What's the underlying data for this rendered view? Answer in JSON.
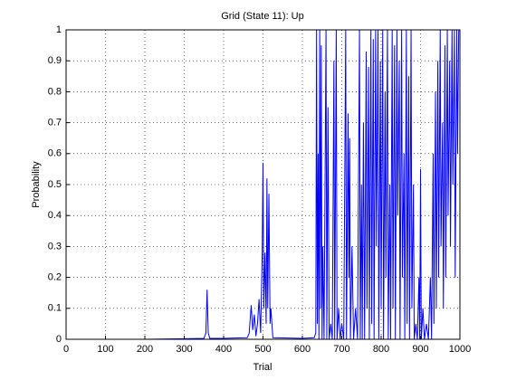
{
  "chart_data": {
    "type": "line",
    "title": "Grid (State 11): Up",
    "xlabel": "Trial",
    "ylabel": "Probability",
    "color": "#0000ff",
    "grid": true,
    "xlim": [
      0,
      1000
    ],
    "ylim": [
      0,
      1
    ],
    "xticks": [
      0,
      100,
      200,
      300,
      400,
      500,
      600,
      700,
      800,
      900,
      1000
    ],
    "yticks": [
      0,
      0.1,
      0.2,
      0.3,
      0.4,
      0.5,
      0.6,
      0.7,
      0.8,
      0.9,
      1
    ],
    "x": [
      0,
      200,
      300,
      350,
      355,
      358,
      361,
      365,
      400,
      460,
      465,
      470,
      474,
      478,
      482,
      486,
      490,
      494,
      498,
      500,
      502,
      505,
      508,
      510,
      512,
      515,
      518,
      520,
      525,
      600,
      630,
      634,
      636,
      638,
      640,
      642,
      644,
      646,
      648,
      650,
      652,
      655,
      660,
      662,
      665,
      668,
      672,
      676,
      680,
      682,
      686,
      688,
      692,
      696,
      700,
      705,
      710,
      712,
      716,
      718,
      720,
      722,
      726,
      730,
      735,
      740,
      745,
      747,
      750,
      752,
      755,
      758,
      762,
      764,
      768,
      770,
      774,
      776,
      780,
      782,
      786,
      788,
      792,
      794,
      798,
      800,
      804,
      806,
      810,
      812,
      816,
      818,
      822,
      824,
      828,
      830,
      834,
      836,
      840,
      842,
      846,
      848,
      852,
      854,
      858,
      860,
      864,
      866,
      870,
      872,
      876,
      878,
      882,
      884,
      888,
      892,
      896,
      898,
      900,
      902,
      906,
      910,
      915,
      920,
      925,
      928,
      932,
      934,
      938,
      940,
      944,
      946,
      950,
      952,
      956,
      958,
      962,
      964,
      968,
      970,
      974,
      976,
      980,
      982,
      986,
      988,
      992,
      994,
      997,
      1000
    ],
    "values": [
      0,
      0,
      0.002,
      0.003,
      0.02,
      0.16,
      0.02,
      0.003,
      0.003,
      0.005,
      0.02,
      0.11,
      0.03,
      0.08,
      0.01,
      0.05,
      0.13,
      0.02,
      0.28,
      0.57,
      0.1,
      0.28,
      0.05,
      0.52,
      0.1,
      0.47,
      0.05,
      0.1,
      0.005,
      0.003,
      0.005,
      0.02,
      1,
      0.05,
      0.6,
      0,
      1,
      0.1,
      0.95,
      0,
      0.3,
      0,
      1,
      0,
      0.75,
      0,
      0.05,
      0,
      0.9,
      0,
      1,
      0,
      0.1,
      0,
      0.05,
      0,
      1,
      0,
      0.73,
      0.2,
      0.65,
      0,
      0.3,
      0,
      0.1,
      0,
      1,
      0,
      0.5,
      0,
      0.7,
      0,
      0.93,
      0.1,
      0.88,
      0,
      1,
      0.05,
      0.97,
      0,
      1,
      0.3,
      1,
      0,
      0.9,
      0.1,
      1,
      0,
      0.8,
      0.2,
      1,
      0,
      0.5,
      0,
      1,
      0.1,
      0.95,
      0,
      1,
      0.4,
      0.9,
      0,
      1,
      0.2,
      0.6,
      0,
      1,
      0.05,
      0.85,
      0,
      1,
      0.1,
      0.5,
      0,
      0.05,
      0,
      0.2,
      0,
      0.55,
      0,
      0.1,
      0,
      0.05,
      0,
      0.2,
      0,
      0.6,
      0.05,
      0.8,
      0.1,
      0.9,
      0.2,
      1,
      0.3,
      0.7,
      0.1,
      0.95,
      0.2,
      1,
      0.4,
      0.9,
      0.3,
      1,
      0.5,
      1,
      0.2,
      1,
      0.6,
      1,
      1
    ]
  }
}
